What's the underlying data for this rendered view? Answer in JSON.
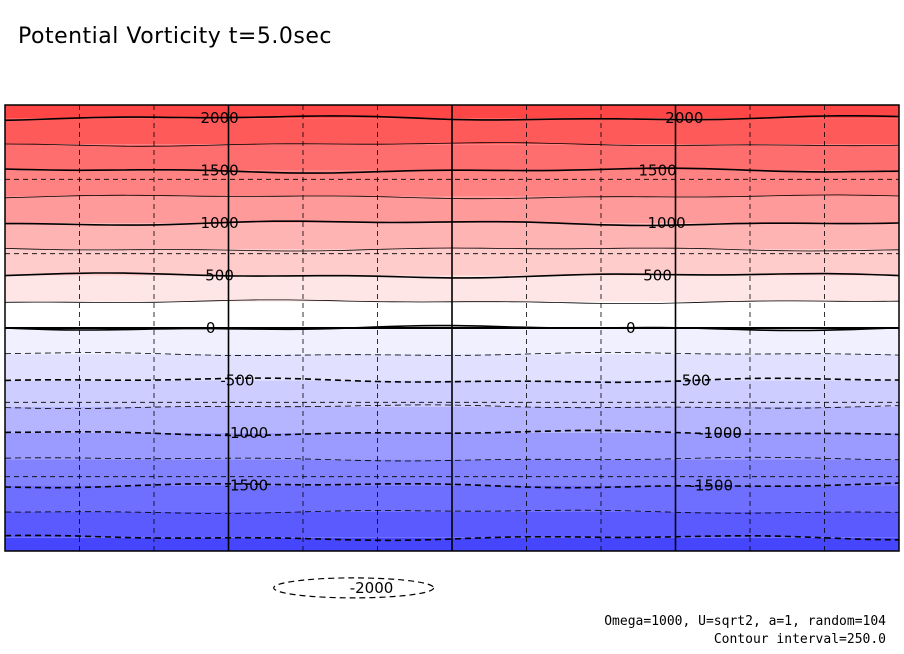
{
  "title": "Potential Vorticity t=5.0sec",
  "footer": {
    "params": "Omega=1000, U=sqrt2, a=1, random=104",
    "interval": "Contour interval=250.0"
  },
  "chart_data": {
    "type": "heatmap",
    "title": "Potential Vorticity t=5.0sec",
    "xlabel": "",
    "ylabel": "",
    "colormap": "red-white-blue",
    "contour_interval": 250.0,
    "value_range": [
      -2125,
      2125
    ],
    "bands": [
      {
        "from": 2000,
        "to": 2250,
        "color": "#ff4646"
      },
      {
        "from": 1750,
        "to": 2000,
        "color": "#ff5a5a"
      },
      {
        "from": 1500,
        "to": 1750,
        "color": "#ff6e6e"
      },
      {
        "from": 1250,
        "to": 1500,
        "color": "#ff8282"
      },
      {
        "from": 1000,
        "to": 1250,
        "color": "#ff9a9a"
      },
      {
        "from": 750,
        "to": 1000,
        "color": "#ffb4b4"
      },
      {
        "from": 500,
        "to": 750,
        "color": "#ffcccc"
      },
      {
        "from": 250,
        "to": 500,
        "color": "#ffe6e6"
      },
      {
        "from": 0,
        "to": 250,
        "color": "#ffffff"
      },
      {
        "from": -250,
        "to": 0,
        "color": "#f0f0ff"
      },
      {
        "from": -500,
        "to": -250,
        "color": "#e1e1ff"
      },
      {
        "from": -750,
        "to": -500,
        "color": "#cdcdff"
      },
      {
        "from": -1000,
        "to": -750,
        "color": "#b4b4ff"
      },
      {
        "from": -1250,
        "to": -1000,
        "color": "#9b9bff"
      },
      {
        "from": -1500,
        "to": -1250,
        "color": "#8282ff"
      },
      {
        "from": -1750,
        "to": -1500,
        "color": "#6e6eff"
      },
      {
        "from": -2000,
        "to": -1750,
        "color": "#5a5aff"
      },
      {
        "from": -2250,
        "to": -2000,
        "color": "#4646ff"
      }
    ],
    "contour_labels": [
      {
        "value": 2000,
        "text": "2000",
        "col": 0.24
      },
      {
        "value": 2000,
        "text": "2000",
        "col": 0.76
      },
      {
        "value": 1500,
        "text": "1500",
        "col": 0.24
      },
      {
        "value": 1500,
        "text": "1500",
        "col": 0.73
      },
      {
        "value": 1000,
        "text": "1000",
        "col": 0.24
      },
      {
        "value": 1000,
        "text": "1000",
        "col": 0.74
      },
      {
        "value": 500,
        "text": "500",
        "col": 0.24
      },
      {
        "value": 500,
        "text": "500",
        "col": 0.73
      },
      {
        "value": 0,
        "text": "0",
        "col": 0.23
      },
      {
        "value": 0,
        "text": "0",
        "col": 0.7
      },
      {
        "value": -500,
        "text": "-500",
        "col": 0.26
      },
      {
        "value": -500,
        "text": "-500",
        "col": 0.77
      },
      {
        "value": -1000,
        "text": "-1000",
        "col": 0.27
      },
      {
        "value": -1000,
        "text": "-1000",
        "col": 0.8
      },
      {
        "value": -1500,
        "text": "-1500",
        "col": 0.27
      },
      {
        "value": -1500,
        "text": "-1500",
        "col": 0.79
      },
      {
        "value": -2000,
        "text": "-2000",
        "col": 0.41
      }
    ],
    "grid": true,
    "x_major_divisions": 4,
    "x_minor_divisions": 12,
    "y_minor_divisions": 6
  }
}
